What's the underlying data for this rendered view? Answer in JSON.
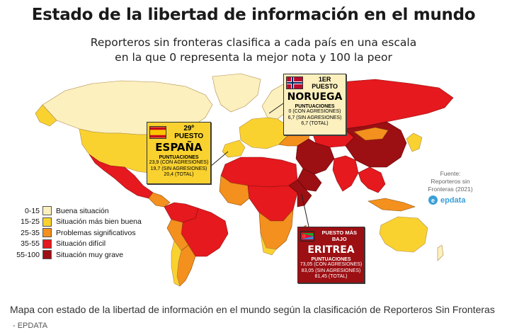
{
  "title": "Estado de la libertad de información en el mundo",
  "subtitle_line1": "Reporteros sin fronteras clasifica a cada país en una escala",
  "subtitle_line2": "en la que 0 representa la mejor nota y 100 la peor",
  "colors": {
    "good": "#fbf0be",
    "fairly_good": "#f9d230",
    "problematic": "#f4901e",
    "difficult": "#e5191e",
    "very_serious": "#9c0f13"
  },
  "legend": [
    {
      "range": "0-15",
      "label": "Buena situación",
      "color": "#fbf0be"
    },
    {
      "range": "15-25",
      "label": "Situación más bien buena",
      "color": "#f9d230"
    },
    {
      "range": "25-35",
      "label": "Problemas significativos",
      "color": "#f4901e"
    },
    {
      "range": "35-55",
      "label": "Situación difícil",
      "color": "#e5191e"
    },
    {
      "range": "55-100",
      "label": "Situación muy grave",
      "color": "#9c0f13"
    }
  ],
  "spain": {
    "rank": "29º PUESTO",
    "name": "ESPAÑA",
    "scores_label": "PUNTUACIONES",
    "line1": "23,9 (CON AGRESIONES)",
    "line2": "19,7 (SIN AGRESIONES)",
    "line3": "20,4 (TOTAL)",
    "flag": "spain-flag"
  },
  "norway": {
    "rank": "1ER PUESTO",
    "name": "NORUEGA",
    "scores_label": "PUNTUACIONES",
    "line1": "0 (CON AGRESIONES)",
    "line2": "6,7 (SIN AGRESIONES)",
    "line3": "6,7 (TOTAL)",
    "flag": "norway-flag"
  },
  "eritrea": {
    "rank": "PUESTO MÁS BAJO",
    "name": "ERITREA",
    "scores_label": "PUNTUACIONES",
    "line1": "73,05 (CON AGRESIONES)",
    "line2": "83,05 (SIN AGRESIONES)",
    "line3": "81,45 (TOTAL)",
    "flag": "eritrea-flag"
  },
  "source_line1": "Fuente:",
  "source_line2": "Reporteros sin",
  "source_line3": "Fronteras (2021)",
  "brand": "epdata",
  "caption": "Mapa con estado de la libertad de información en el mundo según la clasificación de Reporteros Sin Fronteras",
  "credit": "- EPDATA"
}
